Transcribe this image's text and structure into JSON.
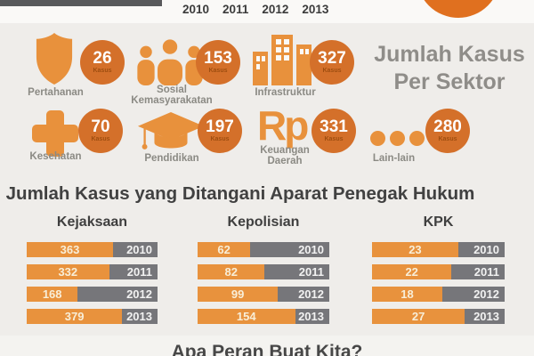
{
  "header": {
    "years": [
      "2010",
      "2011",
      "2012",
      "2013"
    ]
  },
  "sector_section": {
    "title_line1": "Jumlah Kasus",
    "title_line2": "Per Sektor",
    "unit_label": "Kasus",
    "items": [
      {
        "label": "Pertahanan",
        "value": "26",
        "icon": "shield-icon"
      },
      {
        "label": "Sosial Kemasyarakatan",
        "value": "153",
        "icon": "people-icon"
      },
      {
        "label": "Infrastruktur",
        "value": "327",
        "icon": "buildings-icon"
      },
      {
        "label": "Kesehatan",
        "value": "70",
        "icon": "medical-cross-icon"
      },
      {
        "label": "Pendidikan",
        "value": "197",
        "icon": "graduation-cap-icon"
      },
      {
        "label": "Keuangan Daerah",
        "value": "331",
        "icon": "rupiah-icon",
        "icon_text": "Rp"
      },
      {
        "label": "Lain-lain",
        "value": "280",
        "icon": "ellipsis-icon"
      }
    ]
  },
  "enforcement_section": {
    "title": "Jumlah Kasus yang Ditangani Aparat Penegak Hukum",
    "columns": [
      {
        "name": "Kejaksaan",
        "bars": [
          {
            "year": "2010",
            "value": "363",
            "fill_pct": 66
          },
          {
            "year": "2011",
            "value": "332",
            "fill_pct": 63
          },
          {
            "year": "2012",
            "value": "168",
            "fill_pct": 39
          },
          {
            "year": "2013",
            "value": "379",
            "fill_pct": 73
          }
        ]
      },
      {
        "name": "Kepolisian",
        "bars": [
          {
            "year": "2010",
            "value": "62",
            "fill_pct": 40
          },
          {
            "year": "2011",
            "value": "82",
            "fill_pct": 51
          },
          {
            "year": "2012",
            "value": "99",
            "fill_pct": 61
          },
          {
            "year": "2013",
            "value": "154",
            "fill_pct": 74
          }
        ]
      },
      {
        "name": "KPK",
        "bars": [
          {
            "year": "2010",
            "value": "23",
            "fill_pct": 65
          },
          {
            "year": "2011",
            "value": "22",
            "fill_pct": 60
          },
          {
            "year": "2012",
            "value": "18",
            "fill_pct": 53
          },
          {
            "year": "2013",
            "value": "27",
            "fill_pct": 70
          }
        ]
      }
    ]
  },
  "footer": {
    "teaser": "Apa Peran Buat Kita?"
  },
  "colors": {
    "icon_orange": "#E8913C",
    "badge_orange": "#D4702A",
    "bar_orange": "#E8923D",
    "bar_gray": "#76767A",
    "accent_circle_orange": "#E0701F",
    "heading_gray": "#8F8D89",
    "dark_text": "#414141",
    "background": "#EFEDEA"
  },
  "chart_data": [
    {
      "type": "bar",
      "title": "Jumlah Kasus Per Sektor",
      "categories": [
        "Pertahanan",
        "Sosial Kemasyarakatan",
        "Infrastruktur",
        "Kesehatan",
        "Pendidikan",
        "Keuangan Daerah",
        "Lain-lain"
      ],
      "values": [
        26,
        153,
        327,
        70,
        197,
        331,
        280
      ],
      "unit": "Kasus",
      "xlabel": "",
      "ylabel": ""
    },
    {
      "type": "bar",
      "title": "Jumlah Kasus yang Ditangani Aparat Penegak Hukum",
      "categories": [
        "2010",
        "2011",
        "2012",
        "2013"
      ],
      "series": [
        {
          "name": "Kejaksaan",
          "values": [
            363,
            332,
            168,
            379
          ]
        },
        {
          "name": "Kepolisian",
          "values": [
            62,
            82,
            99,
            154
          ]
        },
        {
          "name": "KPK",
          "values": [
            23,
            22,
            18,
            27
          ]
        }
      ],
      "layout": "horizontal bars, value label inside orange segment, year label on gray remainder",
      "xlabel": "",
      "ylabel": ""
    }
  ]
}
